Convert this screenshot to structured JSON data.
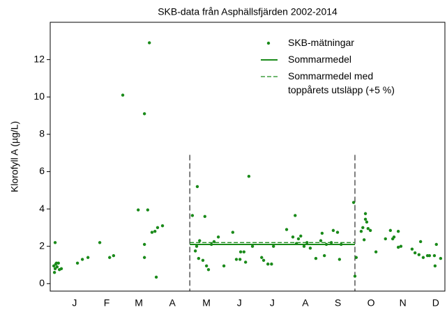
{
  "chart_data": {
    "type": "scatter",
    "title": "SKB-data från Asphällsfjärden 2002-2014",
    "y_label": "Klorofyll A (µg/L)",
    "xlim": [
      0,
      12.02
    ],
    "ylim": [
      -0.4,
      14
    ],
    "yticks": [
      0,
      2,
      4,
      6,
      8,
      10,
      12
    ],
    "xticks": [
      {
        "value": 0.74,
        "label": "J"
      },
      {
        "value": 1.72,
        "label": "F"
      },
      {
        "value": 2.7,
        "label": "M"
      },
      {
        "value": 3.72,
        "label": "A"
      },
      {
        "value": 4.76,
        "label": "M"
      },
      {
        "value": 5.76,
        "label": "J"
      },
      {
        "value": 6.76,
        "label": "J"
      },
      {
        "value": 7.77,
        "label": "A"
      },
      {
        "value": 8.76,
        "label": "S"
      },
      {
        "value": 9.77,
        "label": "O"
      },
      {
        "value": 10.74,
        "label": "N"
      },
      {
        "value": 11.74,
        "label": "D"
      }
    ],
    "vlines": [
      4.25,
      9.28
    ],
    "legend": "upper right",
    "series": [
      {
        "name": "SKB-mätningar",
        "kind": "points",
        "color": "#1a8a1a",
        "x": [
          0.11,
          0.15,
          0.17,
          0.21,
          0.25,
          0.28,
          0.13,
          0.34,
          0.19,
          0.15,
          0.83,
          0.98,
          1.15,
          1.51,
          1.81,
          1.93,
          2.21,
          2.87,
          3.02,
          2.87,
          2.87,
          2.68,
          2.97,
          3.1,
          3.19,
          3.27,
          3.42,
          3.23,
          4.33,
          4.48,
          4.71,
          4.42,
          4.46,
          4.55,
          4.52,
          4.65,
          4.76,
          4.82,
          4.91,
          4.99,
          5.12,
          5.29,
          5.56,
          5.67,
          5.8,
          5.9,
          5.78,
          5.95,
          6.05,
          6.16,
          6.44,
          6.5,
          6.63,
          6.74,
          6.8,
          7.2,
          7.39,
          7.46,
          7.5,
          7.56,
          7.63,
          7.73,
          7.82,
          7.92,
          8.09,
          8.24,
          8.28,
          8.35,
          8.41,
          8.56,
          8.62,
          8.75,
          8.81,
          8.86,
          9.24,
          9.28,
          9.32,
          9.47,
          9.52,
          9.6,
          9.6,
          9.64,
          9.68,
          9.56,
          9.75,
          9.92,
          10.21,
          10.36,
          10.43,
          10.47,
          10.6,
          10.6,
          10.68,
          11.02,
          11.11,
          11.23,
          11.28,
          11.36,
          11.49,
          11.55,
          11.7,
          11.76,
          11.89,
          11.72
        ],
        "values": [
          0.95,
          0.8,
          1.05,
          0.9,
          1.1,
          0.75,
          0.6,
          0.8,
          1.1,
          2.2,
          1.1,
          1.3,
          1.4,
          2.2,
          1.4,
          1.5,
          10.1,
          9.1,
          12.9,
          1.4,
          2.1,
          3.95,
          3.95,
          2.75,
          2.8,
          3.0,
          3.1,
          0.35,
          3.65,
          5.2,
          3.6,
          1.75,
          2.0,
          2.3,
          1.35,
          1.25,
          0.95,
          0.75,
          2.1,
          2.25,
          2.5,
          0.95,
          2.75,
          1.3,
          1.7,
          1.7,
          1.3,
          1.15,
          5.75,
          2.0,
          1.4,
          1.25,
          1.05,
          1.05,
          2.0,
          2.9,
          2.5,
          3.65,
          2.15,
          2.4,
          2.55,
          2.0,
          2.2,
          1.9,
          1.35,
          2.3,
          2.7,
          1.5,
          2.1,
          2.2,
          2.85,
          2.75,
          1.3,
          2.1,
          4.35,
          0.4,
          1.4,
          2.8,
          3.0,
          3.75,
          3.45,
          3.3,
          2.95,
          2.35,
          2.85,
          1.7,
          2.4,
          2.85,
          2.4,
          2.5,
          2.8,
          1.95,
          2.0,
          1.85,
          1.65,
          1.55,
          2.25,
          1.4,
          1.5,
          1.5,
          1.5,
          2.1,
          1.35,
          0.95
        ]
      },
      {
        "name": "Sommarmedel",
        "kind": "line",
        "dash": false,
        "color": "#1a8a1a",
        "x": [
          4.25,
          9.28
        ],
        "values": [
          2.1,
          2.1
        ]
      },
      {
        "name": "Sommarmedel med\ntoppårets utsläpp (+5 %)",
        "kind": "line",
        "dash": true,
        "color": "#1a8a1a",
        "x": [
          4.25,
          9.28
        ],
        "values": [
          2.2,
          2.2
        ]
      }
    ]
  }
}
